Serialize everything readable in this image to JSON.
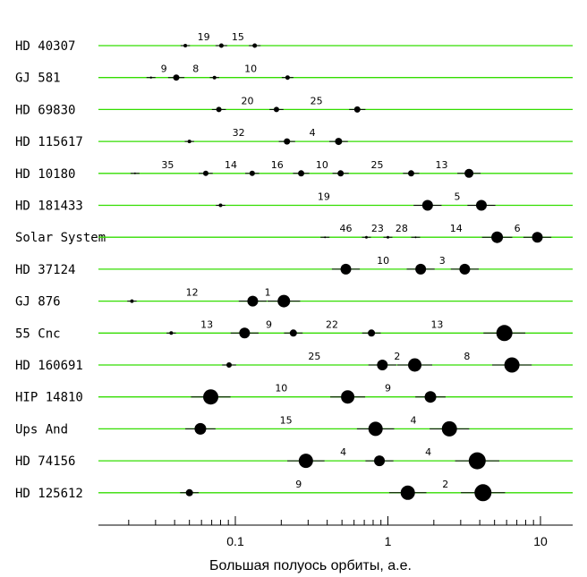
{
  "chart_data": {
    "type": "scatter",
    "xlabel": "Большая полуось орбиты, а.е.",
    "xscale": "log",
    "xlim": [
      0.012,
      15
    ],
    "xticks": [
      {
        "value": 0.1,
        "label": "0.1"
      },
      {
        "value": 1,
        "label": "1"
      },
      {
        "value": 10,
        "label": "10"
      }
    ],
    "line_color": "#33dd00",
    "marker_color": "#000000",
    "systems": [
      {
        "name": "HD 40307",
        "planets": [
          {
            "a": 0.047,
            "size": 2
          },
          {
            "a": 0.081,
            "size": 2.5
          },
          {
            "a": 0.134,
            "size": 2.5
          }
        ],
        "labels": [
          {
            "a": 0.062,
            "text": "19"
          },
          {
            "a": 0.104,
            "text": "15"
          }
        ]
      },
      {
        "name": "GJ 581",
        "planets": [
          {
            "a": 0.028,
            "size": 1.2
          },
          {
            "a": 0.041,
            "size": 3.5
          },
          {
            "a": 0.073,
            "size": 2
          },
          {
            "a": 0.22,
            "size": 2.5
          }
        ],
        "labels": [
          {
            "a": 0.034,
            "text": "9"
          },
          {
            "a": 0.055,
            "text": "8"
          },
          {
            "a": 0.126,
            "text": "10"
          }
        ]
      },
      {
        "name": "HD 69830",
        "planets": [
          {
            "a": 0.078,
            "size": 3
          },
          {
            "a": 0.186,
            "size": 3
          },
          {
            "a": 0.63,
            "size": 3.5
          }
        ],
        "labels": [
          {
            "a": 0.12,
            "text": "20"
          },
          {
            "a": 0.34,
            "text": "25"
          }
        ]
      },
      {
        "name": "HD 115617",
        "planets": [
          {
            "a": 0.05,
            "size": 2
          },
          {
            "a": 0.218,
            "size": 3.5
          },
          {
            "a": 0.475,
            "size": 4
          }
        ],
        "labels": [
          {
            "a": 0.105,
            "text": "32"
          },
          {
            "a": 0.32,
            "text": "4"
          }
        ]
      },
      {
        "name": "HD 10180",
        "planets": [
          {
            "a": 0.022,
            "size": 1
          },
          {
            "a": 0.064,
            "size": 3
          },
          {
            "a": 0.129,
            "size": 3
          },
          {
            "a": 0.27,
            "size": 3.5
          },
          {
            "a": 0.49,
            "size": 3.5
          },
          {
            "a": 1.42,
            "size": 3.5
          },
          {
            "a": 3.4,
            "size": 5
          }
        ],
        "labels": [
          {
            "a": 0.036,
            "text": "35"
          },
          {
            "a": 0.0935,
            "text": "14"
          },
          {
            "a": 0.188,
            "text": "16"
          },
          {
            "a": 0.37,
            "text": "10"
          },
          {
            "a": 0.85,
            "text": "25"
          },
          {
            "a": 2.25,
            "text": "13"
          }
        ]
      },
      {
        "name": "HD 181433",
        "planets": [
          {
            "a": 0.08,
            "size": 2
          },
          {
            "a": 1.82,
            "size": 6
          },
          {
            "a": 4.1,
            "size": 6
          }
        ],
        "labels": [
          {
            "a": 0.38,
            "text": "19"
          },
          {
            "a": 2.85,
            "text": "5"
          }
        ]
      },
      {
        "name": "Solar System",
        "planets": [
          {
            "a": 0.387,
            "size": 1
          },
          {
            "a": 0.723,
            "size": 1.5
          },
          {
            "a": 1.0,
            "size": 1.5
          },
          {
            "a": 1.52,
            "size": 1
          },
          {
            "a": 5.2,
            "size": 6.5
          },
          {
            "a": 9.54,
            "size": 6
          }
        ],
        "labels": [
          {
            "a": 0.53,
            "text": "46"
          },
          {
            "a": 0.855,
            "text": "23"
          },
          {
            "a": 1.23,
            "text": "28"
          },
          {
            "a": 2.8,
            "text": "14"
          },
          {
            "a": 7.05,
            "text": "6"
          }
        ]
      },
      {
        "name": "HD 37124",
        "planets": [
          {
            "a": 0.53,
            "size": 6
          },
          {
            "a": 1.64,
            "size": 6
          },
          {
            "a": 3.19,
            "size": 6
          }
        ],
        "labels": [
          {
            "a": 0.93,
            "text": "10"
          },
          {
            "a": 2.27,
            "text": "3"
          }
        ]
      },
      {
        "name": "GJ 876",
        "planets": [
          {
            "a": 0.021,
            "size": 2
          },
          {
            "a": 0.13,
            "size": 6
          },
          {
            "a": 0.208,
            "size": 7
          }
        ],
        "labels": [
          {
            "a": 0.052,
            "text": "12"
          },
          {
            "a": 0.163,
            "text": "1"
          }
        ]
      },
      {
        "name": "55 Cnc",
        "planets": [
          {
            "a": 0.038,
            "size": 2
          },
          {
            "a": 0.115,
            "size": 6
          },
          {
            "a": 0.24,
            "size": 4
          },
          {
            "a": 0.78,
            "size": 4
          },
          {
            "a": 5.8,
            "size": 9
          }
        ],
        "labels": [
          {
            "a": 0.065,
            "text": "13"
          },
          {
            "a": 0.166,
            "text": "9"
          },
          {
            "a": 0.43,
            "text": "22"
          },
          {
            "a": 2.1,
            "text": "13"
          }
        ]
      },
      {
        "name": "HD 160691",
        "planets": [
          {
            "a": 0.091,
            "size": 3
          },
          {
            "a": 0.92,
            "size": 6
          },
          {
            "a": 1.5,
            "size": 7.5
          },
          {
            "a": 6.5,
            "size": 8.5
          }
        ],
        "labels": [
          {
            "a": 0.33,
            "text": "25"
          },
          {
            "a": 1.15,
            "text": "2"
          },
          {
            "a": 3.3,
            "text": "8"
          }
        ]
      },
      {
        "name": "HIP 14810",
        "planets": [
          {
            "a": 0.069,
            "size": 8.5
          },
          {
            "a": 0.545,
            "size": 7.5
          },
          {
            "a": 1.9,
            "size": 6.5
          }
        ],
        "labels": [
          {
            "a": 0.2,
            "text": "10"
          },
          {
            "a": 1.0,
            "text": "9"
          }
        ]
      },
      {
        "name": "Ups And",
        "planets": [
          {
            "a": 0.059,
            "size": 6.5
          },
          {
            "a": 0.83,
            "size": 8
          },
          {
            "a": 2.53,
            "size": 8.5
          }
        ],
        "labels": [
          {
            "a": 0.215,
            "text": "15"
          },
          {
            "a": 1.47,
            "text": "4"
          }
        ]
      },
      {
        "name": "HD 74156",
        "planets": [
          {
            "a": 0.29,
            "size": 8
          },
          {
            "a": 0.88,
            "size": 6
          },
          {
            "a": 3.85,
            "size": 9.5
          }
        ],
        "labels": [
          {
            "a": 0.51,
            "text": "4"
          },
          {
            "a": 1.84,
            "text": "4"
          }
        ]
      },
      {
        "name": "HD 125612",
        "planets": [
          {
            "a": 0.05,
            "size": 4
          },
          {
            "a": 1.35,
            "size": 8
          },
          {
            "a": 4.2,
            "size": 9.5
          }
        ],
        "labels": [
          {
            "a": 0.26,
            "text": "9"
          },
          {
            "a": 2.38,
            "text": "2"
          }
        ]
      }
    ]
  }
}
